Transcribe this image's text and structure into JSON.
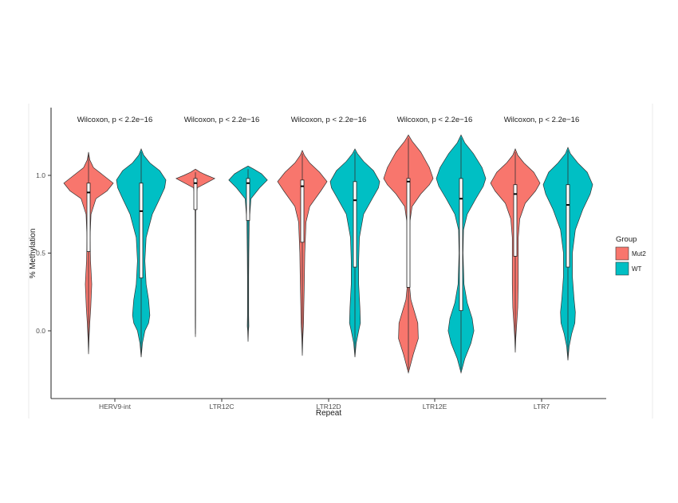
{
  "chart_data": {
    "type": "violin",
    "title": "",
    "xlabel": "Repeat",
    "ylabel": "% Methylation",
    "ylim": [
      -0.3,
      1.42
    ],
    "yticks": [
      0.0,
      0.5,
      1.0
    ],
    "ytick_labels": [
      "0.0",
      "0.5",
      "1.0"
    ],
    "grid": false,
    "categories": [
      "HERV9-int",
      "LTR12C",
      "LTR12D",
      "LTR12E",
      "LTR7"
    ],
    "annotations": [
      "Wilcoxon, p < 2.2e−16",
      "Wilcoxon, p < 2.2e−16",
      "Wilcoxon, p < 2.2e−16",
      "Wilcoxon, p < 2.2e−16",
      "Wilcoxon, p < 2.2e−16"
    ],
    "legend": {
      "title": "Group",
      "placement": "right"
    },
    "series": [
      {
        "name": "Mut2",
        "color": "#f8766d",
        "groups": [
          {
            "category": "HERV9-int",
            "min": -0.15,
            "max": 1.15,
            "q1": 0.51,
            "median": 0.89,
            "q3": 0.95,
            "shape": [
              [
                -0.15,
                0
              ],
              [
                -0.05,
                0.02
              ],
              [
                0.05,
                0.05
              ],
              [
                0.15,
                0.09
              ],
              [
                0.3,
                0.13
              ],
              [
                0.45,
                0.08
              ],
              [
                0.6,
                0.06
              ],
              [
                0.75,
                0.1
              ],
              [
                0.85,
                0.3
              ],
              [
                0.9,
                0.75
              ],
              [
                0.95,
                1.0
              ],
              [
                1.0,
                0.6
              ],
              [
                1.05,
                0.2
              ],
              [
                1.1,
                0.05
              ],
              [
                1.15,
                0
              ]
            ]
          },
          {
            "category": "LTR12C",
            "min": -0.04,
            "max": 1.04,
            "q1": 0.78,
            "median": 0.95,
            "q3": 0.98,
            "shape": [
              [
                -0.04,
                0
              ],
              [
                0.02,
                0.008
              ],
              [
                0.1,
                0.01
              ],
              [
                0.3,
                0.01
              ],
              [
                0.5,
                0.012
              ],
              [
                0.7,
                0.015
              ],
              [
                0.85,
                0.02
              ],
              [
                0.92,
                0.1
              ],
              [
                0.96,
                0.7
              ],
              [
                0.98,
                1.0
              ],
              [
                1.0,
                0.6
              ],
              [
                1.02,
                0.25
              ],
              [
                1.04,
                0
              ]
            ]
          },
          {
            "category": "LTR12D",
            "min": -0.16,
            "max": 1.16,
            "q1": 0.57,
            "median": 0.93,
            "q3": 0.97,
            "shape": [
              [
                -0.16,
                0
              ],
              [
                -0.05,
                0.02
              ],
              [
                0.05,
                0.05
              ],
              [
                0.15,
                0.06
              ],
              [
                0.3,
                0.08
              ],
              [
                0.5,
                0.1
              ],
              [
                0.7,
                0.15
              ],
              [
                0.8,
                0.3
              ],
              [
                0.9,
                0.75
              ],
              [
                0.96,
                1.0
              ],
              [
                1.02,
                0.7
              ],
              [
                1.08,
                0.3
              ],
              [
                1.13,
                0.08
              ],
              [
                1.16,
                0
              ]
            ]
          },
          {
            "category": "LTR12E",
            "min": -0.27,
            "max": 1.26,
            "q1": 0.28,
            "median": 0.96,
            "q3": 0.98,
            "shape": [
              [
                -0.27,
                0
              ],
              [
                -0.15,
                0.2
              ],
              [
                -0.05,
                0.4
              ],
              [
                0.05,
                0.38
              ],
              [
                0.12,
                0.25
              ],
              [
                0.2,
                0.1
              ],
              [
                0.3,
                0.04
              ],
              [
                0.5,
                0.04
              ],
              [
                0.7,
                0.06
              ],
              [
                0.8,
                0.15
              ],
              [
                0.88,
                0.5
              ],
              [
                0.94,
                0.85
              ],
              [
                0.98,
                1.0
              ],
              [
                1.05,
                0.85
              ],
              [
                1.15,
                0.5
              ],
              [
                1.22,
                0.15
              ],
              [
                1.26,
                0
              ]
            ]
          },
          {
            "category": "LTR7",
            "min": -0.14,
            "max": 1.17,
            "q1": 0.48,
            "median": 0.88,
            "q3": 0.94,
            "shape": [
              [
                -0.14,
                0
              ],
              [
                -0.05,
                0.02
              ],
              [
                0.05,
                0.06
              ],
              [
                0.15,
                0.1
              ],
              [
                0.3,
                0.12
              ],
              [
                0.45,
                0.12
              ],
              [
                0.6,
                0.12
              ],
              [
                0.72,
                0.18
              ],
              [
                0.82,
                0.4
              ],
              [
                0.9,
                0.82
              ],
              [
                0.95,
                1.0
              ],
              [
                1.02,
                0.75
              ],
              [
                1.08,
                0.35
              ],
              [
                1.13,
                0.1
              ],
              [
                1.17,
                0
              ]
            ]
          }
        ]
      },
      {
        "name": "WT",
        "color": "#00bfc4",
        "groups": [
          {
            "category": "HERV9-int",
            "min": -0.17,
            "max": 1.17,
            "q1": 0.34,
            "median": 0.77,
            "q3": 0.95,
            "shape": [
              [
                -0.17,
                0
              ],
              [
                -0.08,
                0.05
              ],
              [
                0.0,
                0.15
              ],
              [
                0.05,
                0.3
              ],
              [
                0.1,
                0.35
              ],
              [
                0.2,
                0.3
              ],
              [
                0.3,
                0.2
              ],
              [
                0.45,
                0.15
              ],
              [
                0.6,
                0.2
              ],
              [
                0.75,
                0.45
              ],
              [
                0.85,
                0.75
              ],
              [
                0.92,
                0.95
              ],
              [
                0.97,
                1.0
              ],
              [
                1.03,
                0.75
              ],
              [
                1.08,
                0.35
              ],
              [
                1.13,
                0.1
              ],
              [
                1.17,
                0
              ]
            ]
          },
          {
            "category": "LTR12C",
            "min": -0.07,
            "max": 1.06,
            "q1": 0.71,
            "median": 0.95,
            "q3": 0.98,
            "shape": [
              [
                -0.07,
                0
              ],
              [
                0.0,
                0.02
              ],
              [
                0.03,
                0.04
              ],
              [
                0.1,
                0.03
              ],
              [
                0.2,
                0.03
              ],
              [
                0.35,
                0.03
              ],
              [
                0.5,
                0.04
              ],
              [
                0.7,
                0.06
              ],
              [
                0.85,
                0.15
              ],
              [
                0.92,
                0.6
              ],
              [
                0.97,
                1.0
              ],
              [
                1.01,
                0.7
              ],
              [
                1.04,
                0.3
              ],
              [
                1.06,
                0
              ]
            ]
          },
          {
            "category": "LTR12D",
            "min": -0.17,
            "max": 1.17,
            "q1": 0.41,
            "median": 0.84,
            "q3": 0.96,
            "shape": [
              [
                -0.17,
                0
              ],
              [
                -0.08,
                0.05
              ],
              [
                0.0,
                0.15
              ],
              [
                0.05,
                0.22
              ],
              [
                0.15,
                0.2
              ],
              [
                0.3,
                0.15
              ],
              [
                0.45,
                0.15
              ],
              [
                0.6,
                0.18
              ],
              [
                0.75,
                0.35
              ],
              [
                0.85,
                0.7
              ],
              [
                0.92,
                0.95
              ],
              [
                0.96,
                1.0
              ],
              [
                1.03,
                0.75
              ],
              [
                1.09,
                0.35
              ],
              [
                1.14,
                0.1
              ],
              [
                1.17,
                0
              ]
            ]
          },
          {
            "category": "LTR12E",
            "min": -0.27,
            "max": 1.26,
            "q1": 0.13,
            "median": 0.85,
            "q3": 0.98,
            "shape": [
              [
                -0.27,
                0
              ],
              [
                -0.18,
                0.15
              ],
              [
                -0.08,
                0.4
              ],
              [
                0.0,
                0.52
              ],
              [
                0.08,
                0.45
              ],
              [
                0.18,
                0.25
              ],
              [
                0.3,
                0.12
              ],
              [
                0.5,
                0.08
              ],
              [
                0.65,
                0.1
              ],
              [
                0.75,
                0.25
              ],
              [
                0.85,
                0.6
              ],
              [
                0.93,
                0.9
              ],
              [
                0.98,
                1.0
              ],
              [
                1.05,
                0.85
              ],
              [
                1.14,
                0.5
              ],
              [
                1.21,
                0.15
              ],
              [
                1.26,
                0
              ]
            ]
          },
          {
            "category": "LTR7",
            "min": -0.19,
            "max": 1.18,
            "q1": 0.41,
            "median": 0.81,
            "q3": 0.94,
            "shape": [
              [
                -0.19,
                0
              ],
              [
                -0.1,
                0.05
              ],
              [
                -0.02,
                0.15
              ],
              [
                0.05,
                0.28
              ],
              [
                0.12,
                0.3
              ],
              [
                0.2,
                0.25
              ],
              [
                0.35,
                0.18
              ],
              [
                0.5,
                0.18
              ],
              [
                0.65,
                0.3
              ],
              [
                0.78,
                0.6
              ],
              [
                0.88,
                0.9
              ],
              [
                0.94,
                1.0
              ],
              [
                1.02,
                0.78
              ],
              [
                1.08,
                0.4
              ],
              [
                1.14,
                0.1
              ],
              [
                1.18,
                0
              ]
            ]
          }
        ]
      }
    ]
  }
}
